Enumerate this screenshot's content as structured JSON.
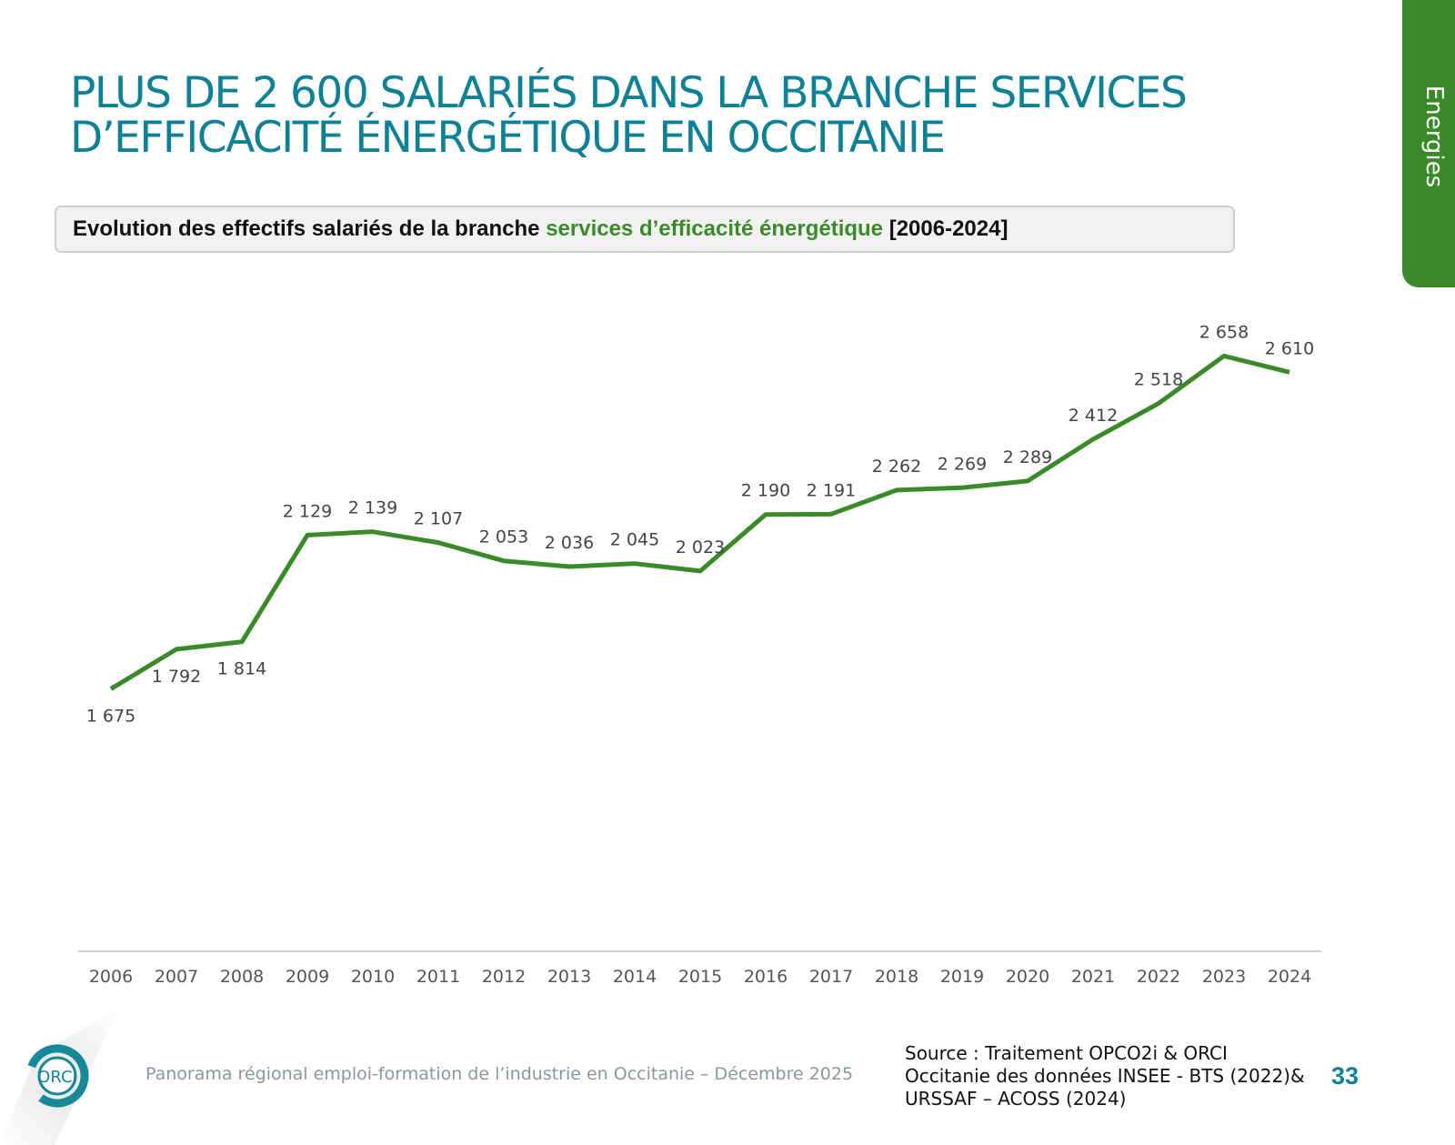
{
  "title_lines": [
    "PLUS DE 2 600 SALARIÉS DANS LA BRANCHE SERVICES",
    "D’EFFICACITÉ ÉNERGÉTIQUE EN OCCITANIE"
  ],
  "side_tab": "Energies",
  "subtitle": {
    "part1": "Evolution des effectifs salariés de la branche ",
    "highlight": "services d’efficacité énergétique",
    "part2": " [2006-2024]"
  },
  "colors": {
    "line": "#3a8a2a",
    "title": "#0e8196",
    "tab": "#3a8a2a"
  },
  "chart_data": {
    "type": "line",
    "title": "",
    "xlabel": "",
    "ylabel": "",
    "grid": false,
    "ylim": [
      900,
      2800
    ],
    "categories": [
      "2006",
      "2007",
      "2008",
      "2009",
      "2010",
      "2011",
      "2012",
      "2013",
      "2014",
      "2015",
      "2016",
      "2017",
      "2018",
      "2019",
      "2020",
      "2021",
      "2022",
      "2023",
      "2024"
    ],
    "values": [
      1675,
      1792,
      1814,
      2129,
      2139,
      2107,
      2053,
      2036,
      2045,
      2023,
      2190,
      2191,
      2262,
      2269,
      2289,
      2412,
      2518,
      2658,
      2610
    ],
    "data_labels": [
      "1 675",
      "1 792",
      "1 814",
      "2 129",
      "2 139",
      "2 107",
      "2 053",
      "2 036",
      "2 045",
      "2 023",
      "2 190",
      "2 191",
      "2 262",
      "2 269",
      "2 289",
      "2 412",
      "2 518",
      "2 658",
      "2 610"
    ]
  },
  "footer": {
    "text": "Panorama régional emploi-formation de l’industrie en Occitanie – Décembre 2025",
    "source_lines": [
      "Source : Traitement OPCO2i & ORCI",
      "Occitanie des données  INSEE - BTS (2022)&",
      "URSSAF – ACOSS (2024)"
    ],
    "page_number": "33",
    "logo_text": "ORCI"
  }
}
